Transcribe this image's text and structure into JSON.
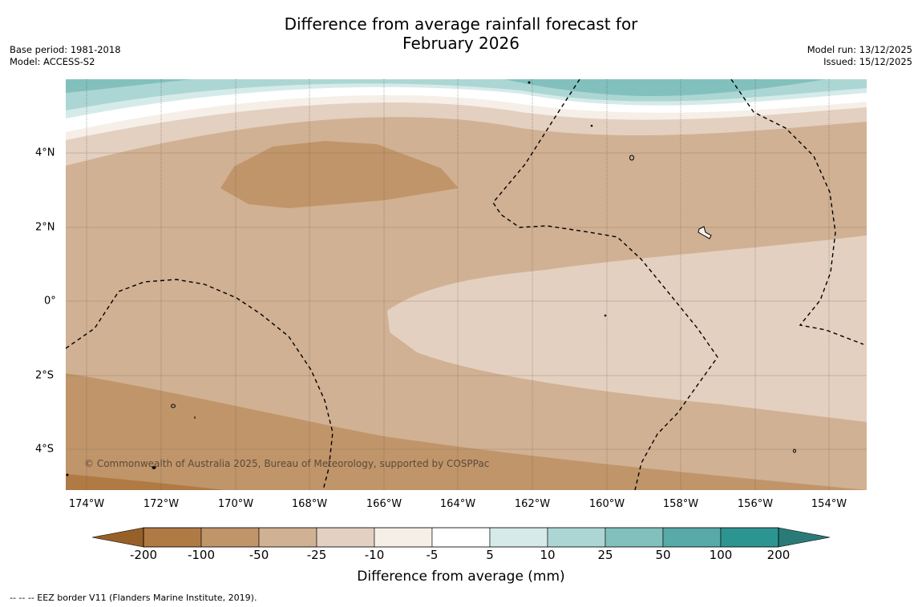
{
  "title": {
    "line1": "Difference from average rainfall forecast for",
    "line2": "February 2026"
  },
  "meta": {
    "base_period": "Base period: 1981-2018",
    "model": "Model: ACCESS-S2",
    "model_run": "Model run: 13/12/2025",
    "issued": "Issued: 15/12/2025"
  },
  "map": {
    "latitude_labels": [
      "4°N",
      "2°N",
      "0°",
      "2°S",
      "4°S"
    ],
    "longitude_labels": [
      "174°W",
      "172°W",
      "170°W",
      "168°W",
      "166°W",
      "164°W",
      "162°W",
      "160°W",
      "158°W",
      "156°W",
      "154°W"
    ],
    "copyright": "© Commonwealth of Australia 2025, Bureau of Meteorology, supported by COSPPac",
    "colors": {
      "very_dry": "#b07a45",
      "dry_100": "#c0956a",
      "dry_50": "#d1b193",
      "dry_25": "#e3d0c0",
      "dry_10": "#f5efe8",
      "neutral": "#ffffff",
      "wet_5": "#d5ebe9",
      "wet_10": "#acd6d4",
      "wet_25": "#82c0bd",
      "wet_50": "#57aaa7",
      "wet_100": "#2d9591"
    }
  },
  "colorbar": {
    "ticks": [
      "-200",
      "-100",
      "-50",
      "-25",
      "-10",
      "-5",
      "5",
      "10",
      "25",
      "50",
      "100",
      "200"
    ],
    "segment_colors": [
      "#b07a45",
      "#c0956a",
      "#d1b193",
      "#e3d0c0",
      "#f5efe8",
      "#ffffff",
      "#d5ebe9",
      "#acd6d4",
      "#82c0bd",
      "#57aaa7",
      "#2d9591"
    ],
    "low_extend_color": "#966028",
    "high_extend_color": "#2a7b78",
    "label": "Difference from average (mm)"
  },
  "footer": "--  --  -- EEZ border V11 (Flanders Marine Institute, 2019)."
}
